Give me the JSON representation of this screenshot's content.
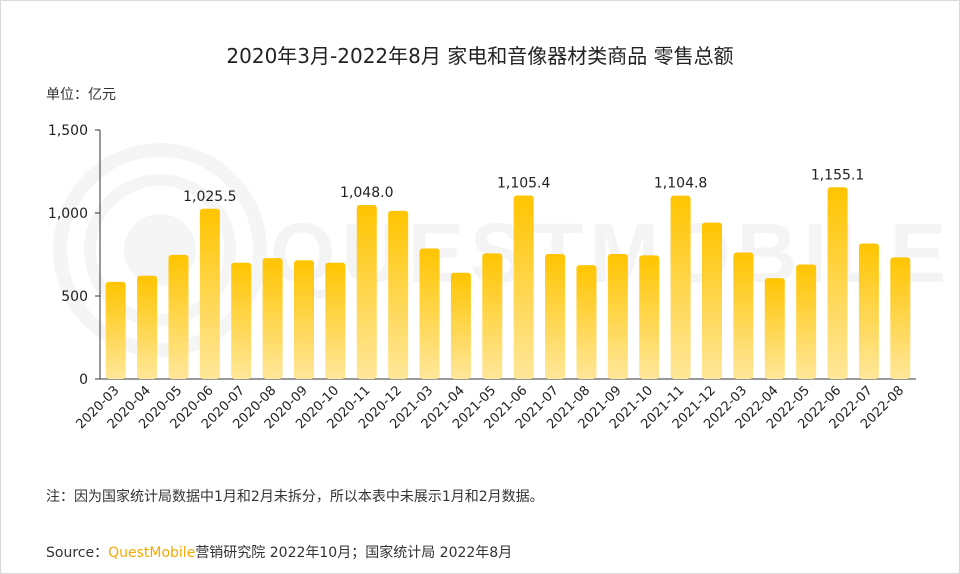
{
  "page": {
    "title": "2020年3月-2022年8月 家电和音像器材类商品 零售总额",
    "unit_label": "单位：亿元",
    "note": "注：因为国家统计局数据中1月和2月未拆分，所以本表中未展示1月和2月数据。",
    "source_prefix": "Source：",
    "source_brand": "QuestMobile",
    "source_rest": "营销研究院 2022年10月；国家统计局 2022年8月",
    "watermark": "QUESTMOBILE"
  },
  "colors": {
    "bar_top": "#ffc400",
    "bar_bottom": "#ffe79a",
    "axis": "#333333",
    "text": "#222222",
    "brand": "#f5a800"
  },
  "chart_data": {
    "type": "bar",
    "categories": [
      "2020-03",
      "2020-04",
      "2020-05",
      "2020-06",
      "2020-07",
      "2020-08",
      "2020-09",
      "2020-10",
      "2020-11",
      "2020-12",
      "2021-03",
      "2021-04",
      "2021-05",
      "2021-06",
      "2021-07",
      "2021-08",
      "2021-09",
      "2021-10",
      "2021-11",
      "2021-12",
      "2022-03",
      "2022-04",
      "2022-05",
      "2022-06",
      "2022-07",
      "2022-08"
    ],
    "values": [
      585,
      622,
      748,
      1025.5,
      700,
      728,
      715,
      700,
      1048.0,
      1013,
      786,
      640,
      757,
      1105.4,
      753,
      686,
      753,
      745,
      1104.8,
      942,
      762,
      608,
      690,
      1155.1,
      816,
      733
    ],
    "data_labels": [
      {
        "index": 3,
        "text": "1,025.5"
      },
      {
        "index": 8,
        "text": "1,048.0"
      },
      {
        "index": 13,
        "text": "1,105.4"
      },
      {
        "index": 18,
        "text": "1,104.8"
      },
      {
        "index": 23,
        "text": "1,155.1"
      }
    ],
    "yticks": [
      0,
      500,
      1000,
      1500
    ],
    "ytick_labels": [
      "0",
      "500",
      "1,000",
      "1,500"
    ],
    "ylim": [
      0,
      1500
    ],
    "grid": false,
    "legend": "none"
  }
}
